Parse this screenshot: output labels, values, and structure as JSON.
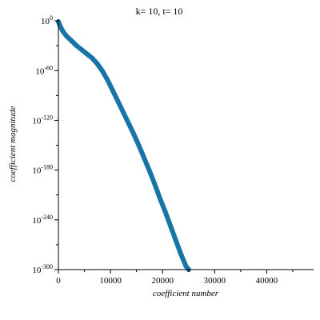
{
  "chart_data": {
    "type": "scatter",
    "title": "k= 10, t= 10",
    "xlabel": "coefficient number",
    "ylabel": "coefficient magnitude",
    "y_scale": "log10",
    "xlim": [
      0,
      49000
    ],
    "ylim_exponent": [
      -300,
      2
    ],
    "x_ticks": [
      {
        "value": 0,
        "label": "0"
      },
      {
        "value": 10000,
        "label": "10000"
      },
      {
        "value": 20000,
        "label": "20000"
      },
      {
        "value": 30000,
        "label": "30000"
      },
      {
        "value": 40000,
        "label": "40000"
      }
    ],
    "y_ticks": [
      {
        "exponent": 0,
        "base": "10",
        "exp_label": "0"
      },
      {
        "exponent": -60,
        "base": "10",
        "exp_label": "-60"
      },
      {
        "exponent": -120,
        "base": "10",
        "exp_label": "-120"
      },
      {
        "exponent": -180,
        "base": "10",
        "exp_label": "-180"
      },
      {
        "exponent": -240,
        "base": "10",
        "exp_label": "-240"
      },
      {
        "exponent": -300,
        "base": "10",
        "exp_label": "-300"
      }
    ],
    "series": [
      {
        "color": "#1874a6",
        "x": [
          0,
          300,
          800,
          1500,
          2500,
          3500,
          4500,
          5500,
          6500,
          7500,
          8500,
          9500,
          10500,
          11500,
          12500,
          13500,
          14500,
          15500,
          16500,
          17500,
          18500,
          19500,
          20500,
          21500,
          22500,
          23500,
          24500,
          25000
        ],
        "log10_y": [
          -1,
          -6,
          -12,
          -18,
          -24,
          -30,
          -35,
          -40,
          -45,
          -52,
          -61,
          -72,
          -85,
          -98,
          -111,
          -124,
          -137,
          -151,
          -166,
          -181,
          -197,
          -214,
          -230,
          -247,
          -264,
          -281,
          -296,
          -300
        ]
      }
    ]
  }
}
